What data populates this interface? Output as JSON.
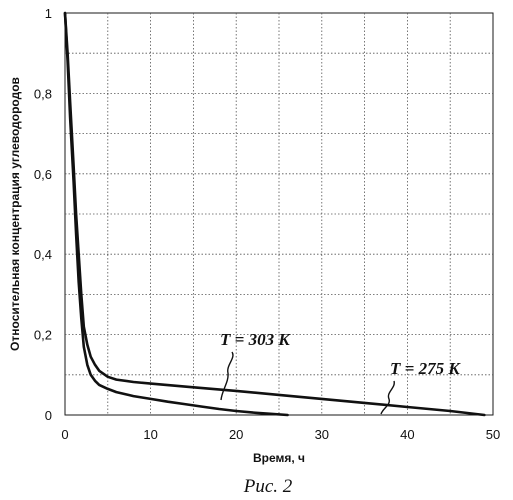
{
  "chart_data": {
    "type": "line",
    "title": "",
    "xlabel": "Время, ч",
    "ylabel": "Относительная концентрация углеводородов",
    "xlim": [
      0,
      50
    ],
    "ylim": [
      0,
      1
    ],
    "x_ticks": [
      "0",
      "10",
      "20",
      "30",
      "40",
      "50"
    ],
    "y_ticks": [
      "0",
      "0,2",
      "0,4",
      "0,6",
      "0,8",
      "1"
    ],
    "grid": "dotted, x every 5 h, y every 0.1",
    "series": [
      {
        "name": "T = 303 K",
        "x": [
          0,
          0.3,
          0.6,
          1.0,
          1.3,
          1.6,
          1.9,
          2.2,
          2.6,
          3.0,
          3.5,
          4.0,
          5.0,
          6.0,
          8.0,
          10.0,
          12.0,
          14.0,
          16.0,
          18.0,
          20.0,
          22.0,
          24.0,
          26.0
        ],
        "values": [
          1.0,
          0.88,
          0.74,
          0.58,
          0.45,
          0.33,
          0.24,
          0.17,
          0.125,
          0.1,
          0.085,
          0.075,
          0.065,
          0.057,
          0.047,
          0.04,
          0.033,
          0.027,
          0.021,
          0.015,
          0.01,
          0.006,
          0.003,
          0.0
        ]
      },
      {
        "name": "T = 275 K",
        "x": [
          0,
          0.3,
          0.6,
          1.0,
          1.3,
          1.6,
          1.9,
          2.2,
          2.6,
          3.0,
          3.5,
          4.0,
          5.0,
          6.0,
          8.0,
          10.0,
          15.0,
          20.0,
          25.0,
          30.0,
          35.0,
          40.0,
          45.0,
          49.0
        ],
        "values": [
          1.0,
          0.9,
          0.78,
          0.62,
          0.5,
          0.4,
          0.3,
          0.22,
          0.175,
          0.145,
          0.125,
          0.11,
          0.095,
          0.088,
          0.082,
          0.078,
          0.069,
          0.06,
          0.05,
          0.04,
          0.03,
          0.02,
          0.01,
          0.0
        ]
      }
    ],
    "annotations": [
      "T = 303 K",
      "T = 275 K"
    ]
  },
  "caption": "Рис. 2"
}
